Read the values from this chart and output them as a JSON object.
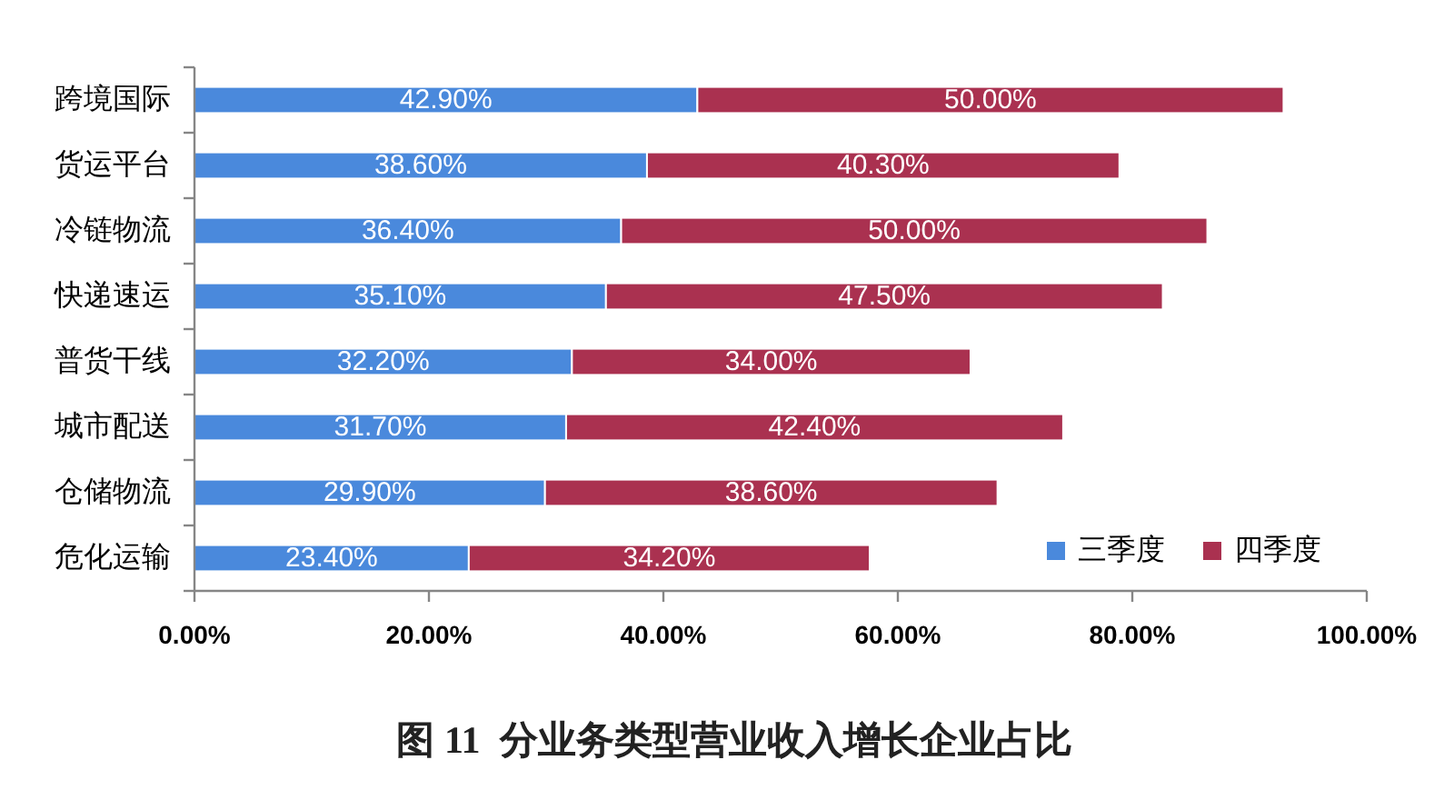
{
  "chart_data": {
    "type": "bar",
    "orientation": "horizontal",
    "stacked": true,
    "title": "图 11  分业务类型营业收入增长企业占比",
    "categories": [
      "跨境国际",
      "货运平台",
      "冷链物流",
      "快递速运",
      "普货干线",
      "城市配送",
      "仓储物流",
      "危化运输"
    ],
    "series": [
      {
        "name": "三季度",
        "color": "#4a89dc",
        "values": [
          42.9,
          38.6,
          36.4,
          35.1,
          32.2,
          31.7,
          29.9,
          23.4
        ],
        "value_labels": [
          "42.90%",
          "38.60%",
          "36.40%",
          "35.10%",
          "32.20%",
          "31.70%",
          "29.90%",
          "23.40%"
        ]
      },
      {
        "name": "四季度",
        "color": "#aa3150",
        "values": [
          50.0,
          40.3,
          50.0,
          47.5,
          34.0,
          42.4,
          38.6,
          34.2
        ],
        "value_labels": [
          "50.00%",
          "40.30%",
          "50.00%",
          "47.50%",
          "34.00%",
          "42.40%",
          "38.60%",
          "34.20%"
        ]
      }
    ],
    "xlim": [
      0,
      100
    ],
    "xticks": [
      {
        "value": 0,
        "label": "0.00%"
      },
      {
        "value": 20,
        "label": "20.00%"
      },
      {
        "value": 40,
        "label": "40.00%"
      },
      {
        "value": 60,
        "label": "60.00%"
      },
      {
        "value": 80,
        "label": "80.00%"
      },
      {
        "value": 100,
        "label": "100.00%"
      }
    ],
    "grid": false,
    "legend": "bottom right"
  }
}
